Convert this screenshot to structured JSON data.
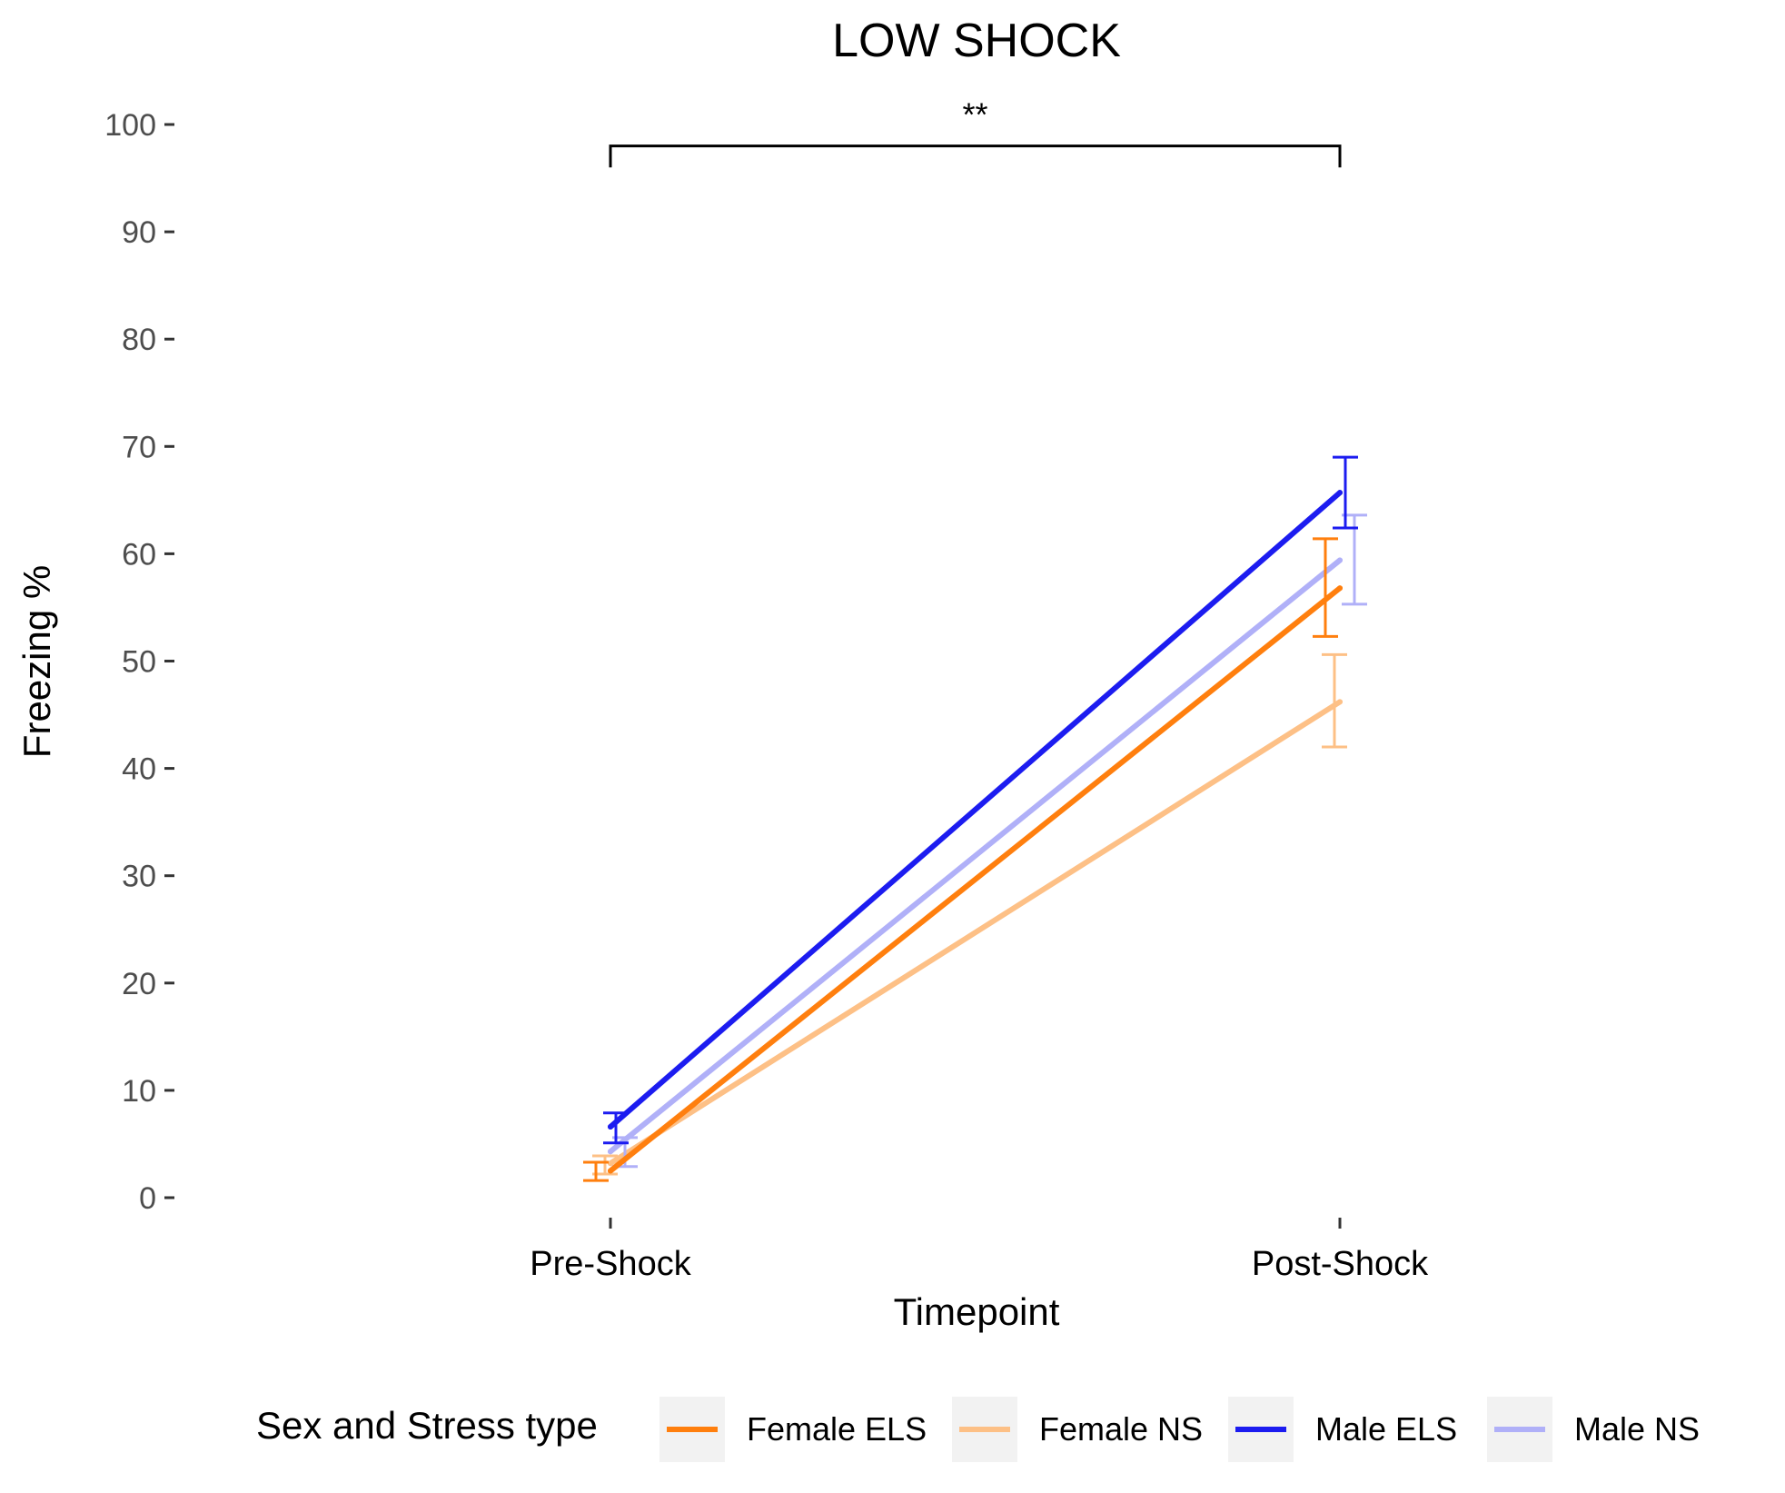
{
  "chart_data": {
    "type": "line",
    "title": "LOW SHOCK",
    "xlabel": "Timepoint",
    "ylabel": "Freezing %",
    "categories": [
      "Pre-Shock",
      "Post-Shock"
    ],
    "ylim": [
      0,
      100
    ],
    "yticks": [
      0,
      10,
      20,
      30,
      40,
      50,
      60,
      70,
      80,
      90,
      100
    ],
    "grid": false,
    "legend": {
      "title": "Sex and Stress type",
      "position": "bottom"
    },
    "series": [
      {
        "name": "Female ELS",
        "color": "#ff7f0e",
        "values": [
          2.5,
          56.8
        ],
        "err_low": [
          1.6,
          52.3
        ],
        "err_high": [
          3.3,
          61.4
        ]
      },
      {
        "name": "Female NS",
        "color": "#fdc086",
        "values": [
          3.2,
          46.2
        ],
        "err_low": [
          2.2,
          42.0
        ],
        "err_high": [
          3.9,
          50.6
        ]
      },
      {
        "name": "Male ELS",
        "color": "#1c1cf0",
        "values": [
          6.6,
          65.7
        ],
        "err_low": [
          5.1,
          62.4
        ],
        "err_high": [
          7.9,
          69.0
        ]
      },
      {
        "name": "Male NS",
        "color": "#b0b0f8",
        "values": [
          4.3,
          59.4
        ],
        "err_low": [
          2.9,
          55.3
        ],
        "err_high": [
          5.6,
          63.6
        ]
      }
    ],
    "annotations": [
      {
        "type": "significance-bracket",
        "label": "**",
        "from": "Pre-Shock",
        "to": "Post-Shock",
        "y": 98
      }
    ]
  }
}
